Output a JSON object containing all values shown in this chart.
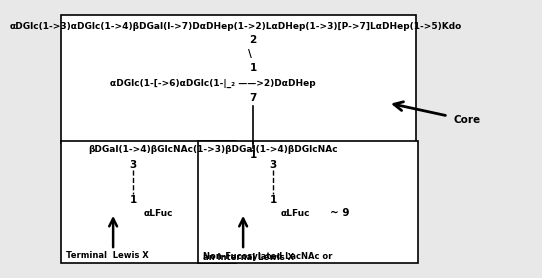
{
  "bg_color": "#e8e8e8",
  "line1": "αDGlc(1->3)αDGlc(1->4)βDGal(l->7)DαDHep(1->2)LαDHep(1->3)[P->7]LαDHep(1->5)Kdo",
  "line2": "αDGlc(1-[->6)αDGlc(1-|_₂ ——>2)DαDHep",
  "line3": "βDGal(1->4)βGlcNAc(1->3)βDGal(1->4)βDGlcNAc",
  "alfuc1": "αLFuc",
  "alfuc2": "αLFuc",
  "core_text": "Core",
  "terminal_line1": "Terminal  Lewis X",
  "internal_line1": "Non-Fucosylated LacNAc or",
  "internal_line2": "an Internal Lewis X",
  "fontsize_main": 6.5,
  "fontsize_label": 7.5,
  "fontsize_bold": 8.0
}
